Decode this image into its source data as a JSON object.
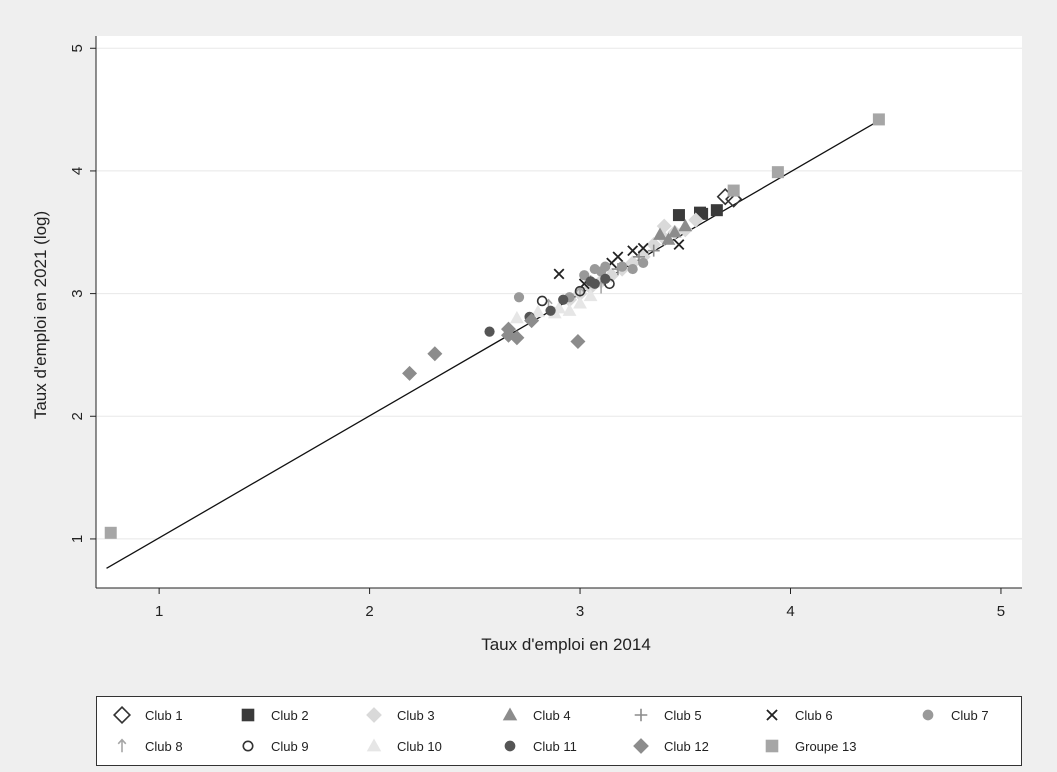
{
  "chart_data": {
    "type": "scatter",
    "xlabel": "Taux d'emploi en 2014",
    "ylabel": "Taux d'emploi en 2021 (log)",
    "xlim": [
      0.7,
      5.1
    ],
    "ylim": [
      0.6,
      5.1
    ],
    "xticks": [
      "1",
      "2",
      "3",
      "4",
      "5"
    ],
    "yticks": [
      "1",
      "2",
      "3",
      "4",
      "5"
    ],
    "grid": "horizontal",
    "legend_position": "bottom",
    "fit_line": {
      "x": [
        0.75,
        4.42
      ],
      "y": [
        0.76,
        4.41
      ]
    },
    "series": [
      {
        "name": "Club 1",
        "marker": "diamond-open",
        "color": "#333333",
        "points": [
          [
            3.69,
            3.79
          ],
          [
            3.73,
            3.77
          ]
        ]
      },
      {
        "name": "Club 2",
        "marker": "square",
        "color": "#3a3a3a",
        "points": [
          [
            3.47,
            3.64
          ],
          [
            3.57,
            3.66
          ],
          [
            3.65,
            3.68
          ],
          [
            3.58,
            3.65
          ]
        ]
      },
      {
        "name": "Club 3",
        "marker": "diamond",
        "color": "#d9d9d9",
        "points": [
          [
            2.95,
            2.95
          ],
          [
            3.0,
            3.0
          ],
          [
            3.05,
            3.05
          ],
          [
            3.1,
            3.1
          ],
          [
            3.15,
            3.15
          ],
          [
            3.2,
            3.2
          ],
          [
            3.25,
            3.25
          ],
          [
            3.3,
            3.3
          ],
          [
            3.35,
            3.4
          ],
          [
            3.4,
            3.45
          ],
          [
            3.45,
            3.5
          ],
          [
            3.5,
            3.52
          ],
          [
            3.4,
            3.55
          ],
          [
            3.55,
            3.6
          ]
        ]
      },
      {
        "name": "Club 4",
        "marker": "triangle",
        "color": "#8c8c8c",
        "points": [
          [
            3.38,
            3.48
          ],
          [
            3.45,
            3.5
          ],
          [
            3.5,
            3.55
          ],
          [
            3.42,
            3.44
          ]
        ]
      },
      {
        "name": "Club 5",
        "marker": "plus",
        "color": "#8c8c8c",
        "points": [
          [
            3.05,
            3.1
          ],
          [
            3.18,
            3.2
          ],
          [
            3.28,
            3.3
          ],
          [
            3.35,
            3.35
          ]
        ]
      },
      {
        "name": "Club 6",
        "marker": "x",
        "color": "#222222",
        "points": [
          [
            2.9,
            3.16
          ],
          [
            3.02,
            3.08
          ],
          [
            3.15,
            3.25
          ],
          [
            3.18,
            3.3
          ],
          [
            3.25,
            3.35
          ],
          [
            3.3,
            3.37
          ],
          [
            3.47,
            3.4
          ]
        ]
      },
      {
        "name": "Club 7",
        "marker": "circle",
        "color": "#999999",
        "points": [
          [
            2.71,
            2.97
          ],
          [
            2.95,
            2.97
          ],
          [
            3.02,
            3.15
          ],
          [
            3.07,
            3.2
          ],
          [
            3.1,
            3.18
          ],
          [
            3.2,
            3.22
          ],
          [
            3.25,
            3.2
          ],
          [
            3.3,
            3.25
          ],
          [
            3.12,
            3.22
          ]
        ]
      },
      {
        "name": "Club 8",
        "marker": "arrow-up",
        "color": "#a6a6a6",
        "points": [
          [
            2.85,
            2.9
          ],
          [
            3.0,
            3.0
          ],
          [
            3.1,
            3.05
          ]
        ]
      },
      {
        "name": "Club 9",
        "marker": "circle-open",
        "color": "#333333",
        "points": [
          [
            2.82,
            2.94
          ],
          [
            3.14,
            3.08
          ],
          [
            3.0,
            3.02
          ]
        ]
      },
      {
        "name": "Club 10",
        "marker": "triangle",
        "color": "#e6e6e6",
        "points": [
          [
            2.7,
            2.8
          ],
          [
            2.8,
            2.85
          ],
          [
            2.9,
            2.88
          ],
          [
            3.0,
            2.92
          ],
          [
            3.05,
            2.98
          ],
          [
            2.95,
            2.86
          ],
          [
            2.88,
            2.84
          ]
        ]
      },
      {
        "name": "Club 11",
        "marker": "circle",
        "color": "#555555",
        "points": [
          [
            2.57,
            2.69
          ],
          [
            2.76,
            2.81
          ],
          [
            2.86,
            2.86
          ],
          [
            2.92,
            2.95
          ],
          [
            3.05,
            3.1
          ],
          [
            3.07,
            3.08
          ],
          [
            3.12,
            3.12
          ]
        ]
      },
      {
        "name": "Club 12",
        "marker": "diamond",
        "color": "#8c8c8c",
        "points": [
          [
            2.19,
            2.35
          ],
          [
            2.31,
            2.51
          ],
          [
            2.66,
            2.71
          ],
          [
            2.66,
            2.66
          ],
          [
            2.7,
            2.64
          ],
          [
            2.99,
            2.61
          ],
          [
            2.77,
            2.78
          ]
        ]
      },
      {
        "name": "Groupe 13",
        "marker": "square",
        "color": "#a6a6a6",
        "points": [
          [
            0.77,
            1.05
          ],
          [
            3.94,
            3.99
          ],
          [
            3.73,
            3.84
          ],
          [
            4.42,
            4.42
          ]
        ]
      }
    ]
  }
}
